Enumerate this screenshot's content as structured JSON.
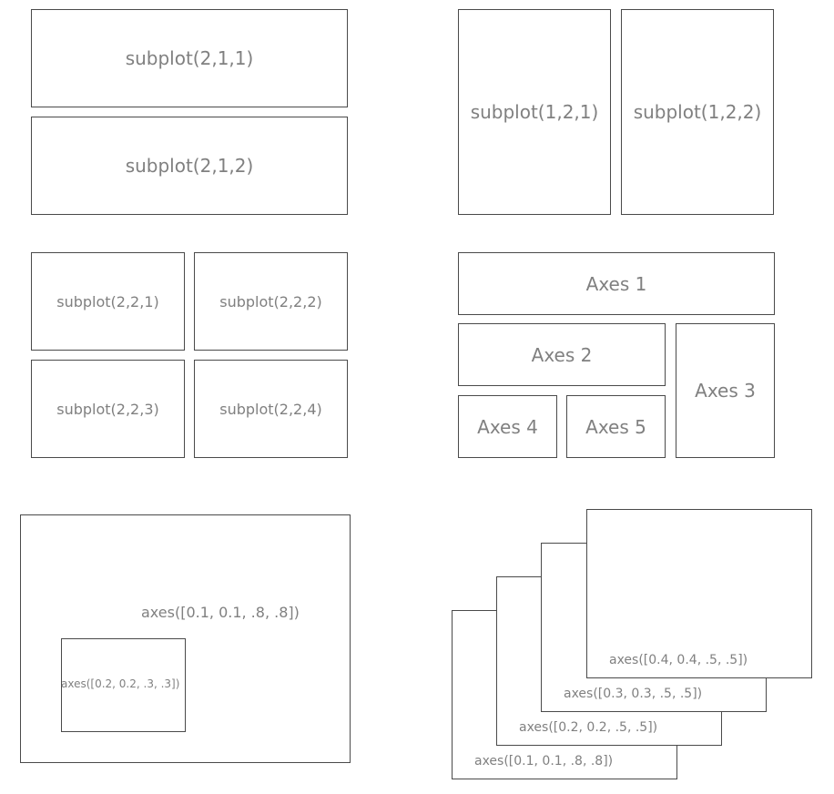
{
  "panel_a": {
    "top": "subplot(2,1,1)",
    "bottom": "subplot(2,1,2)"
  },
  "panel_b": {
    "left": "subplot(1,2,1)",
    "right": "subplot(1,2,2)"
  },
  "panel_c": {
    "p1": "subplot(2,2,1)",
    "p2": "subplot(2,2,2)",
    "p3": "subplot(2,2,3)",
    "p4": "subplot(2,2,4)"
  },
  "panel_d": {
    "axes1": "Axes 1",
    "axes2": "Axes 2",
    "axes3": "Axes 3",
    "axes4": "Axes 4",
    "axes5": "Axes 5"
  },
  "panel_e": {
    "outer": "axes([0.1, 0.1, .8, .8])",
    "inner": "axes([0.2, 0.2, .3, .3])"
  },
  "panel_f": {
    "a1": "axes([0.1, 0.1, .8, .8])",
    "a2": "axes([0.2, 0.2, .5, .5])",
    "a3": "axes([0.3, 0.3, .5, .5])",
    "a4": "axes([0.4, 0.4, .5, .5])"
  }
}
